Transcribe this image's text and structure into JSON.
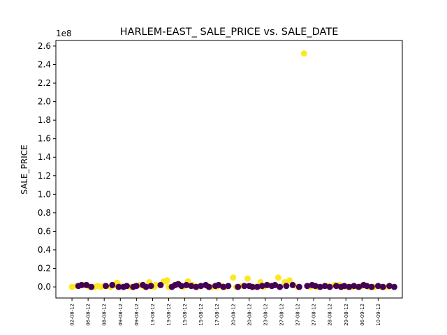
{
  "chart_data": {
    "type": "scatter",
    "title": "HARLEM-EAST_ SALE_PRICE vs. SALE_DATE",
    "xlabel": "",
    "ylabel": "SALE_PRICE",
    "y_offset_label": "1e8",
    "ylim": [
      -0.12,
      2.66
    ],
    "y_ticks": [
      "0.0",
      "0.2",
      "0.4",
      "0.6",
      "0.8",
      "1.0",
      "1.2",
      "1.4",
      "1.6",
      "1.8",
      "2.0",
      "2.2",
      "2.4",
      "2.6"
    ],
    "x_ticks": [
      "02-08-12",
      "06-08-12",
      "08-08-12",
      "09-08-12",
      "09-08-12",
      "13-08-12",
      "13-08-12",
      "15-08-12",
      "15-08-12",
      "17-08-12",
      "20-08-12",
      "20-08-12",
      "23-08-12",
      "27-08-12",
      "27-08-12",
      "27-08-12",
      "28-08-12",
      "29-08-12",
      "06-09-12",
      "10-09-12"
    ],
    "x_range": [
      -1.0,
      20.5
    ],
    "colors": {
      "class_a": "#fde725",
      "class_b": "#440154"
    },
    "series": [
      {
        "color_key": "class_a",
        "x": [
          0.0,
          0.3,
          0.8,
          1.1,
          1.4,
          1.6,
          1.8,
          2.0,
          2.4,
          2.6,
          2.8,
          3.0,
          3.6,
          3.9,
          4.2,
          4.5,
          4.8,
          5.1,
          5.7,
          5.9,
          5.2,
          5.8,
          6.0,
          6.3,
          6.5,
          6.9,
          7.2,
          7.5,
          7.8,
          8.4,
          8.7,
          9.0,
          9.3,
          9.6,
          10.0,
          10.2,
          10.5,
          10.9,
          11.4,
          11.7,
          11.9,
          12.2,
          12.8,
          13.2,
          13.5,
          14.0,
          14.4,
          14.8,
          15.2,
          15.9,
          16.3,
          16.6,
          17.0,
          17.4,
          17.7,
          18.0,
          18.4,
          18.8,
          19.2,
          19.6
        ],
        "y": [
          0.0,
          0.01,
          0.02,
          0.0,
          0.0,
          0.01,
          0.0,
          0.01,
          0.0,
          0.02,
          0.045,
          0.01,
          0.0,
          0.01,
          0.02,
          0.0,
          0.05,
          0.0,
          0.06,
          0.07,
          0.02,
          0.06,
          0.0,
          0.01,
          0.03,
          0.0,
          0.06,
          0.02,
          0.0,
          0.01,
          0.0,
          0.0,
          0.01,
          0.0,
          0.1,
          0.0,
          0.01,
          0.09,
          0.0,
          0.05,
          0.0,
          0.02,
          0.1,
          0.05,
          0.07,
          0.0,
          2.52,
          0.0,
          0.0,
          0.01,
          0.02,
          0.02,
          0.0,
          0.0,
          0.0,
          0.01,
          0.0,
          0.0,
          0.0,
          0.0
        ]
      },
      {
        "color_key": "class_b",
        "x": [
          0.4,
          0.6,
          0.9,
          1.2,
          2.1,
          2.5,
          2.9,
          3.2,
          3.4,
          3.8,
          4.0,
          4.4,
          4.6,
          4.9,
          5.5,
          6.2,
          6.4,
          6.6,
          6.8,
          7.1,
          7.4,
          7.7,
          8.0,
          8.3,
          8.5,
          8.9,
          9.1,
          9.4,
          9.7,
          10.3,
          10.7,
          11.0,
          11.2,
          11.5,
          11.8,
          12.1,
          12.4,
          12.6,
          12.9,
          13.3,
          13.7,
          14.1,
          14.6,
          14.9,
          15.1,
          15.4,
          15.7,
          16.0,
          16.4,
          16.7,
          16.9,
          17.2,
          17.5,
          17.8,
          18.1,
          18.3,
          18.6,
          19.0,
          19.3,
          19.7,
          20.0
        ],
        "y": [
          0.01,
          0.02,
          0.02,
          0.0,
          0.01,
          0.02,
          0.0,
          0.0,
          0.01,
          0.0,
          0.01,
          0.02,
          0.0,
          0.01,
          0.02,
          0.0,
          0.02,
          0.03,
          0.01,
          0.02,
          0.01,
          0.0,
          0.01,
          0.02,
          0.0,
          0.01,
          0.02,
          0.0,
          0.01,
          0.0,
          0.01,
          0.01,
          0.0,
          0.0,
          0.01,
          0.02,
          0.01,
          0.02,
          0.0,
          0.01,
          0.02,
          0.0,
          0.01,
          0.02,
          0.01,
          0.0,
          0.01,
          0.0,
          0.01,
          0.0,
          0.01,
          0.0,
          0.01,
          0.0,
          0.02,
          0.01,
          0.0,
          0.01,
          0.0,
          0.01,
          0.0
        ]
      }
    ]
  }
}
